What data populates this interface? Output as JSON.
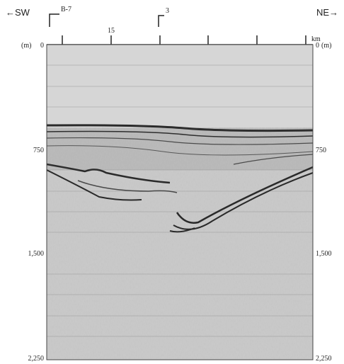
{
  "labels": {
    "sw": "←SW",
    "ne": "NE→",
    "line_b7": "B-7",
    "line_3": "3",
    "km_tick": "15",
    "km_unit": "km"
  },
  "left_axis": {
    "unit": "(m)",
    "ticks": [
      "0",
      "750",
      "1,500",
      "2,250"
    ]
  },
  "right_axis": {
    "unit": "(m)",
    "ticks": [
      "0",
      "750",
      "1,500",
      "2,250"
    ]
  }
}
